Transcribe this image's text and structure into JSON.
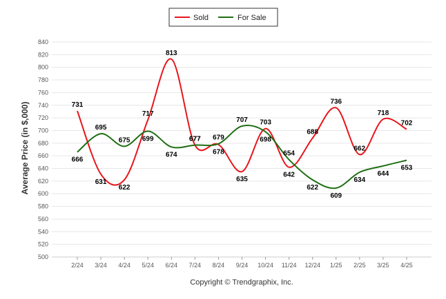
{
  "chart_data": {
    "type": "line",
    "categories": [
      "2/24",
      "3/24",
      "4/24",
      "5/24",
      "6/24",
      "7/24",
      "8/24",
      "9/24",
      "10/24",
      "11/24",
      "12/24",
      "1/25",
      "2/25",
      "3/25",
      "4/25"
    ],
    "series": [
      {
        "name": "Sold",
        "color": "#e8141b",
        "values": [
          731,
          631,
          622,
          717,
          813,
          677,
          678,
          635,
          703,
          642,
          688,
          736,
          662,
          718,
          702
        ]
      },
      {
        "name": "For Sale",
        "color": "#1e6e12",
        "values": [
          666,
          695,
          675,
          699,
          674,
          677,
          679,
          707,
          698,
          654,
          622,
          609,
          634,
          644,
          653
        ]
      }
    ],
    "ylabel": "Average Price (in $,000)",
    "ylim": [
      500,
      840
    ],
    "yticks": [
      500,
      520,
      540,
      560,
      580,
      600,
      620,
      640,
      660,
      680,
      700,
      720,
      740,
      760,
      780,
      800,
      820,
      840
    ],
    "grid": true,
    "legend_position": "top-center"
  },
  "footer": "Copyright © Trendgraphix, Inc."
}
